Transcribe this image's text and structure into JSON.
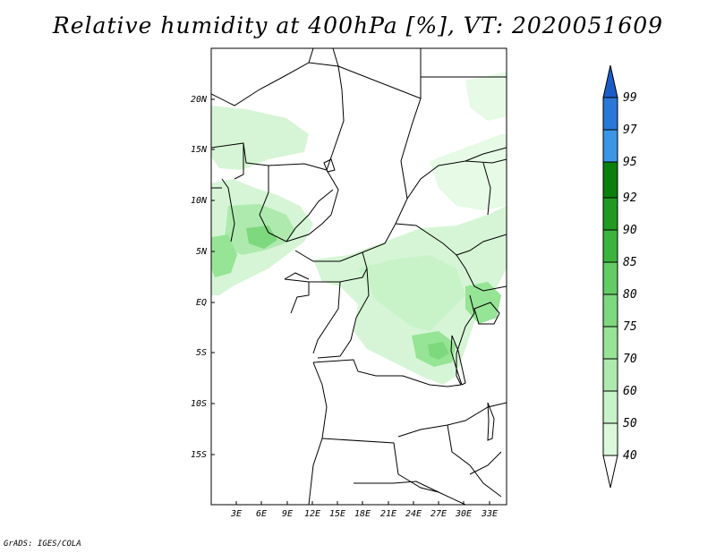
{
  "title": "Relative humidity at 400hPa [%], VT: 2020051609",
  "credit": "GrADS: IGES/COLA",
  "map": {
    "variable": "Relative humidity",
    "level": "400hPa",
    "units": "%",
    "valid_time": "2020051609",
    "lon_range": [
      0,
      34.5
    ],
    "lat_range": [
      -20,
      25
    ],
    "lat_ticks": [
      "20N",
      "15N",
      "10N",
      "5N",
      "EQ",
      "5S",
      "10S",
      "15S"
    ],
    "lon_ticks": [
      "3E",
      "6E",
      "9E",
      "12E",
      "15E",
      "18E",
      "21E",
      "24E",
      "27E",
      "30E",
      "33E"
    ]
  },
  "colorbar": {
    "levels": [
      "40",
      "50",
      "60",
      "70",
      "75",
      "80",
      "85",
      "90",
      "92",
      "95",
      "97",
      "99"
    ],
    "colors": [
      "#f0fff0",
      "#dcf8dc",
      "#c8f2c8",
      "#aeeaae",
      "#96e496",
      "#7ed87e",
      "#64cc64",
      "#3cb43c",
      "#229a22",
      "#0b7f0b",
      "#3c96e6",
      "#2a78d8",
      "#1a5cc8"
    ]
  }
}
